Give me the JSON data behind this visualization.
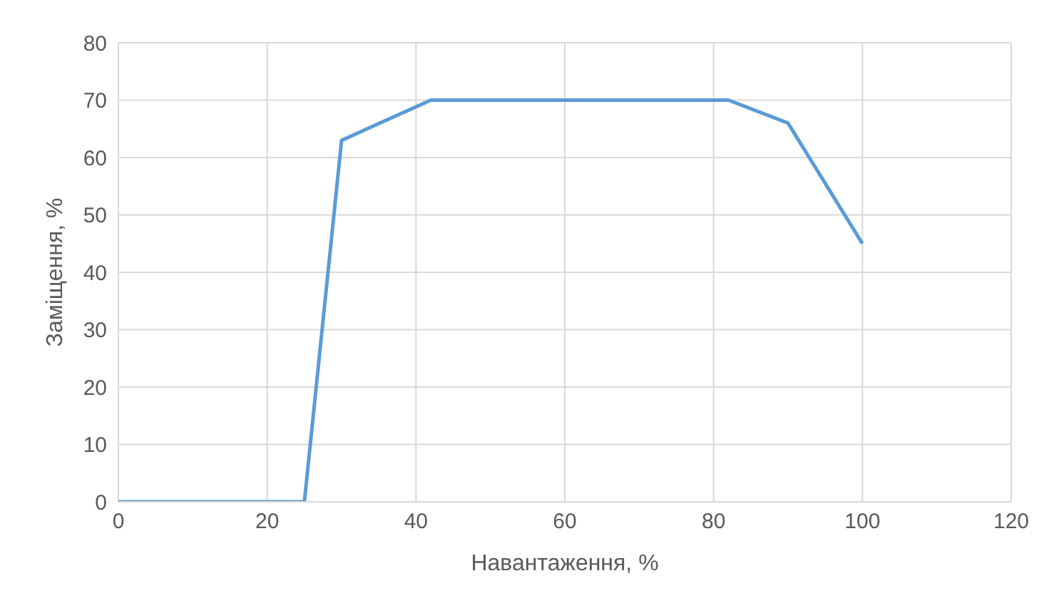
{
  "chart_data": {
    "type": "line",
    "xlabel": "Навантаження, %",
    "ylabel": "Заміщення, %",
    "x": [
      0,
      25,
      30,
      42,
      82,
      90,
      100
    ],
    "series": [
      {
        "color": "#5b9bd5",
        "values": [
          0,
          0,
          63,
          70,
          70,
          66,
          45
        ]
      }
    ],
    "xlim": [
      0,
      120
    ],
    "xticks": [
      0,
      20,
      40,
      60,
      80,
      100,
      120
    ],
    "ylim": [
      0,
      80
    ],
    "yticks": [
      0,
      10,
      20,
      30,
      40,
      50,
      60,
      70,
      80
    ],
    "grid": true,
    "marker": "none",
    "line_style": "solid",
    "legend": false
  }
}
